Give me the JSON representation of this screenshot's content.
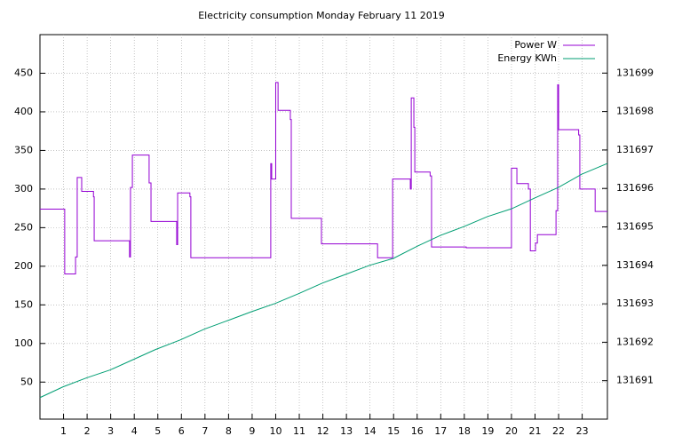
{
  "chart_data": {
    "type": "line",
    "title": "Electricity consumption Monday February 11 2019",
    "xlim": [
      0,
      24.07
    ],
    "xticks": [
      1,
      2,
      3,
      4,
      5,
      6,
      7,
      8,
      9,
      10,
      11,
      12,
      13,
      14,
      15,
      16,
      17,
      18,
      19,
      20,
      21,
      22,
      23
    ],
    "ylim": [
      2,
      500
    ],
    "yticks": [
      50,
      100,
      150,
      200,
      250,
      300,
      350,
      400,
      450
    ],
    "y2lim": [
      131690,
      131700
    ],
    "y2ticks": [
      131691,
      131692,
      131693,
      131694,
      131695,
      131696,
      131697,
      131698,
      131699
    ],
    "grid": true,
    "legend": "top-right",
    "series": [
      {
        "name": "Power W",
        "color": "#9400d3",
        "step": true,
        "x": [
          0,
          1.05,
          1.51,
          1.55,
          1.58,
          1.77,
          2.27,
          2.3,
          3.8,
          3.84,
          3.88,
          3.92,
          4.63,
          4.67,
          4.71,
          5.8,
          5.84,
          6.36,
          6.4,
          9.79,
          9.83,
          10.0,
          10.06,
          10.1,
          10.62,
          10.66,
          11.94,
          14.32,
          14.96,
          15.71,
          15.75,
          15.86,
          15.9,
          16.55,
          16.61,
          18.08,
          20.0,
          20.23,
          20.72,
          20.8,
          21.02,
          21.1,
          21.89,
          21.92,
          21.96,
          22.0,
          22.85,
          22.9,
          23.55,
          24.07
        ],
        "values": [
          274,
          190,
          212,
          212,
          315,
          297,
          290,
          233,
          212,
          302,
          302,
          344,
          308,
          308,
          258,
          228,
          295,
          290,
          211,
          333,
          313,
          438,
          438,
          402,
          390,
          262,
          229,
          211,
          313,
          300,
          418,
          380,
          322,
          317,
          225,
          224,
          327,
          307,
          300,
          220,
          230,
          241,
          272,
          272,
          435,
          377,
          370,
          300,
          271,
          271
        ]
      },
      {
        "name": "Energy KWh",
        "color": "#009e73",
        "axis": "y2",
        "x": [
          0,
          0.98,
          1.96,
          2.98,
          3.96,
          4.9,
          5.95,
          6.97,
          7.99,
          9.0,
          9.98,
          10.96,
          11.99,
          12.99,
          13.98,
          14.99,
          16.01,
          16.99,
          17.99,
          18.99,
          20.0,
          20.98,
          22.0,
          22.98,
          24.07
        ],
        "values": [
          131690.56,
          131690.84,
          131691.07,
          131691.28,
          131691.55,
          131691.81,
          131692.06,
          131692.34,
          131692.57,
          131692.8,
          131693.01,
          131693.26,
          131693.54,
          131693.77,
          131694.0,
          131694.18,
          131694.5,
          131694.78,
          131695.01,
          131695.27,
          131695.47,
          131695.75,
          131696.03,
          131696.37,
          131696.65
        ]
      }
    ]
  }
}
